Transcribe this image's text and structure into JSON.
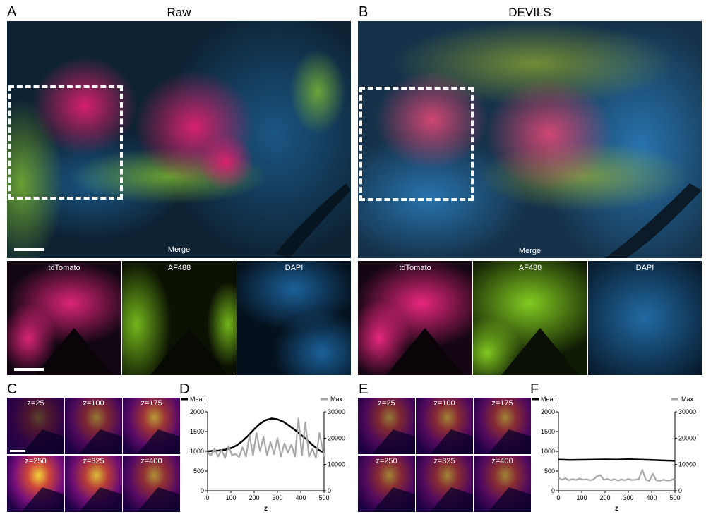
{
  "panels": {
    "A": {
      "letter": "A",
      "title": "Raw",
      "merge_label": "Merge",
      "channels": [
        "tdTomato",
        "AF488",
        "DAPI"
      ]
    },
    "B": {
      "letter": "B",
      "title": "DEVILS",
      "merge_label": "Merge",
      "channels": [
        "tdTomato",
        "AF488",
        "DAPI"
      ]
    },
    "C": {
      "letter": "C",
      "z_labels": [
        "z=25",
        "z=100",
        "z=175",
        "z=250",
        "z=325",
        "z=400"
      ]
    },
    "D": {
      "letter": "D"
    },
    "E": {
      "letter": "E",
      "z_labels": [
        "z=25",
        "z=100",
        "z=175",
        "z=250",
        "z=325",
        "z=400"
      ]
    },
    "F": {
      "letter": "F"
    }
  },
  "colors": {
    "tdTomato": "#ff2a8a",
    "AF488": "#a6e22e",
    "DAPI": "#2d8fd5",
    "mean_line": "#000000",
    "max_line": "#a8a8a8"
  },
  "chart_data": [
    {
      "id": "D",
      "type": "line",
      "xlabel": "z",
      "xlim": [
        0,
        500
      ],
      "x_ticks": [
        0,
        100,
        200,
        300,
        400,
        500
      ],
      "ylim_left": [
        0,
        2000
      ],
      "y_ticks_left": [
        0,
        500,
        1000,
        1500,
        2000
      ],
      "ylim_right": [
        0,
        30000
      ],
      "y_ticks_right": [
        0,
        10000,
        20000,
        30000
      ],
      "legend_left": "Mean",
      "legend_right": "Max",
      "series": [
        {
          "name": "Mean",
          "axis": "left",
          "x": [
            0,
            25,
            50,
            75,
            100,
            125,
            150,
            175,
            200,
            225,
            250,
            275,
            300,
            325,
            350,
            375,
            400,
            425,
            450,
            475,
            500
          ],
          "y": [
            1000,
            1010,
            1020,
            1040,
            1080,
            1150,
            1260,
            1400,
            1560,
            1700,
            1790,
            1830,
            1810,
            1750,
            1650,
            1540,
            1420,
            1300,
            1160,
            1040,
            960
          ]
        },
        {
          "name": "Max",
          "axis": "right",
          "x": [
            0,
            15,
            30,
            45,
            60,
            75,
            90,
            105,
            120,
            135,
            150,
            165,
            180,
            195,
            210,
            225,
            240,
            255,
            270,
            285,
            300,
            315,
            330,
            345,
            360,
            375,
            390,
            405,
            420,
            435,
            450,
            465,
            480,
            495,
            500
          ],
          "y": [
            14500,
            13500,
            16000,
            13000,
            15500,
            12500,
            17000,
            13500,
            14000,
            12800,
            16500,
            13000,
            21000,
            13500,
            22000,
            15000,
            20500,
            13500,
            18500,
            14000,
            20000,
            13000,
            18000,
            14500,
            17500,
            13000,
            27500,
            13500,
            26000,
            13000,
            16000,
            12500,
            22000,
            15500,
            13000
          ]
        }
      ]
    },
    {
      "id": "F",
      "type": "line",
      "xlabel": "z",
      "xlim": [
        0,
        500
      ],
      "x_ticks": [
        0,
        100,
        200,
        300,
        400,
        500
      ],
      "ylim_left": [
        0,
        2000
      ],
      "y_ticks_left": [
        0,
        500,
        1000,
        1500,
        2000
      ],
      "ylim_right": [
        0,
        30000
      ],
      "y_ticks_right": [
        0,
        10000,
        20000,
        30000
      ],
      "legend_left": "Mean",
      "legend_right": "Max",
      "series": [
        {
          "name": "Mean",
          "axis": "left",
          "x": [
            0,
            50,
            100,
            150,
            200,
            250,
            300,
            350,
            400,
            450,
            500
          ],
          "y": [
            790,
            780,
            785,
            790,
            795,
            790,
            800,
            790,
            780,
            770,
            760
          ]
        },
        {
          "name": "Max",
          "axis": "right",
          "x": [
            0,
            15,
            30,
            45,
            60,
            75,
            90,
            105,
            120,
            135,
            150,
            165,
            180,
            195,
            210,
            225,
            240,
            255,
            270,
            285,
            300,
            315,
            330,
            345,
            360,
            375,
            390,
            405,
            420,
            435,
            450,
            465,
            480,
            495,
            500
          ],
          "y": [
            5000,
            4200,
            4800,
            4000,
            4500,
            4100,
            4700,
            4200,
            4400,
            4000,
            4300,
            5500,
            6000,
            4200,
            4500,
            4000,
            4400,
            3900,
            4300,
            4000,
            4500,
            4100,
            4200,
            4500,
            8000,
            4200,
            3800,
            6500,
            4000,
            3800,
            4200,
            3900,
            4000,
            4500,
            4100
          ]
        }
      ]
    }
  ]
}
